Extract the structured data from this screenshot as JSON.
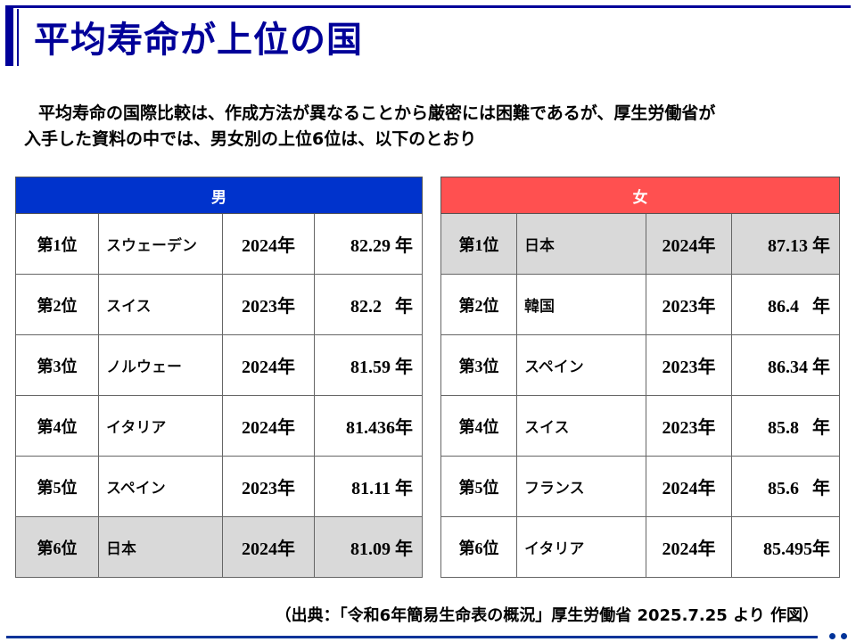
{
  "title": "平均寿命が上位の国",
  "intro": {
    "line1": "平均寿命の国際比較は、作成方法が異なることから厳密には困難であるが、厚生労働省が",
    "line2": "入手した資料の中では、男女別の上位6位は、以下のとおり"
  },
  "colors": {
    "title": "#000099",
    "men_header": "#0033cc",
    "women_header": "#ff5050",
    "highlight_row": "#d9d9d9",
    "rule": "#003399"
  },
  "men": {
    "header": "男",
    "rows": [
      {
        "rank": "第1位",
        "country": "スウェーデン",
        "year": "2024年",
        "value": "82.29 年",
        "highlight": false
      },
      {
        "rank": "第2位",
        "country": "スイス",
        "year": "2023年",
        "value": "82.2   年",
        "highlight": false
      },
      {
        "rank": "第3位",
        "country": "ノルウェー",
        "year": "2024年",
        "value": "81.59 年",
        "highlight": false
      },
      {
        "rank": "第4位",
        "country": "イタリア",
        "year": "2024年",
        "value": "81.436年",
        "highlight": false
      },
      {
        "rank": "第5位",
        "country": "スペイン",
        "year": "2023年",
        "value": "81.11 年",
        "highlight": false
      },
      {
        "rank": "第6位",
        "country": "日本",
        "year": "2024年",
        "value": "81.09 年",
        "highlight": true
      }
    ]
  },
  "women": {
    "header": "女",
    "rows": [
      {
        "rank": "第1位",
        "country": "日本",
        "year": "2024年",
        "value": "87.13 年",
        "highlight": true
      },
      {
        "rank": "第2位",
        "country": "韓国",
        "year": "2023年",
        "value": "86.4   年",
        "highlight": false
      },
      {
        "rank": "第3位",
        "country": "スペイン",
        "year": "2023年",
        "value": "86.34 年",
        "highlight": false
      },
      {
        "rank": "第4位",
        "country": "スイス",
        "year": "2023年",
        "value": "85.8   年",
        "highlight": false
      },
      {
        "rank": "第5位",
        "country": "フランス",
        "year": "2024年",
        "value": "85.6   年",
        "highlight": false
      },
      {
        "rank": "第6位",
        "country": "イタリア",
        "year": "2024年",
        "value": "85.495年",
        "highlight": false
      }
    ]
  },
  "source": "（出典：「令和6年簡易生命表の概況」厚生労働省 2025.7.25 より 作図）"
}
